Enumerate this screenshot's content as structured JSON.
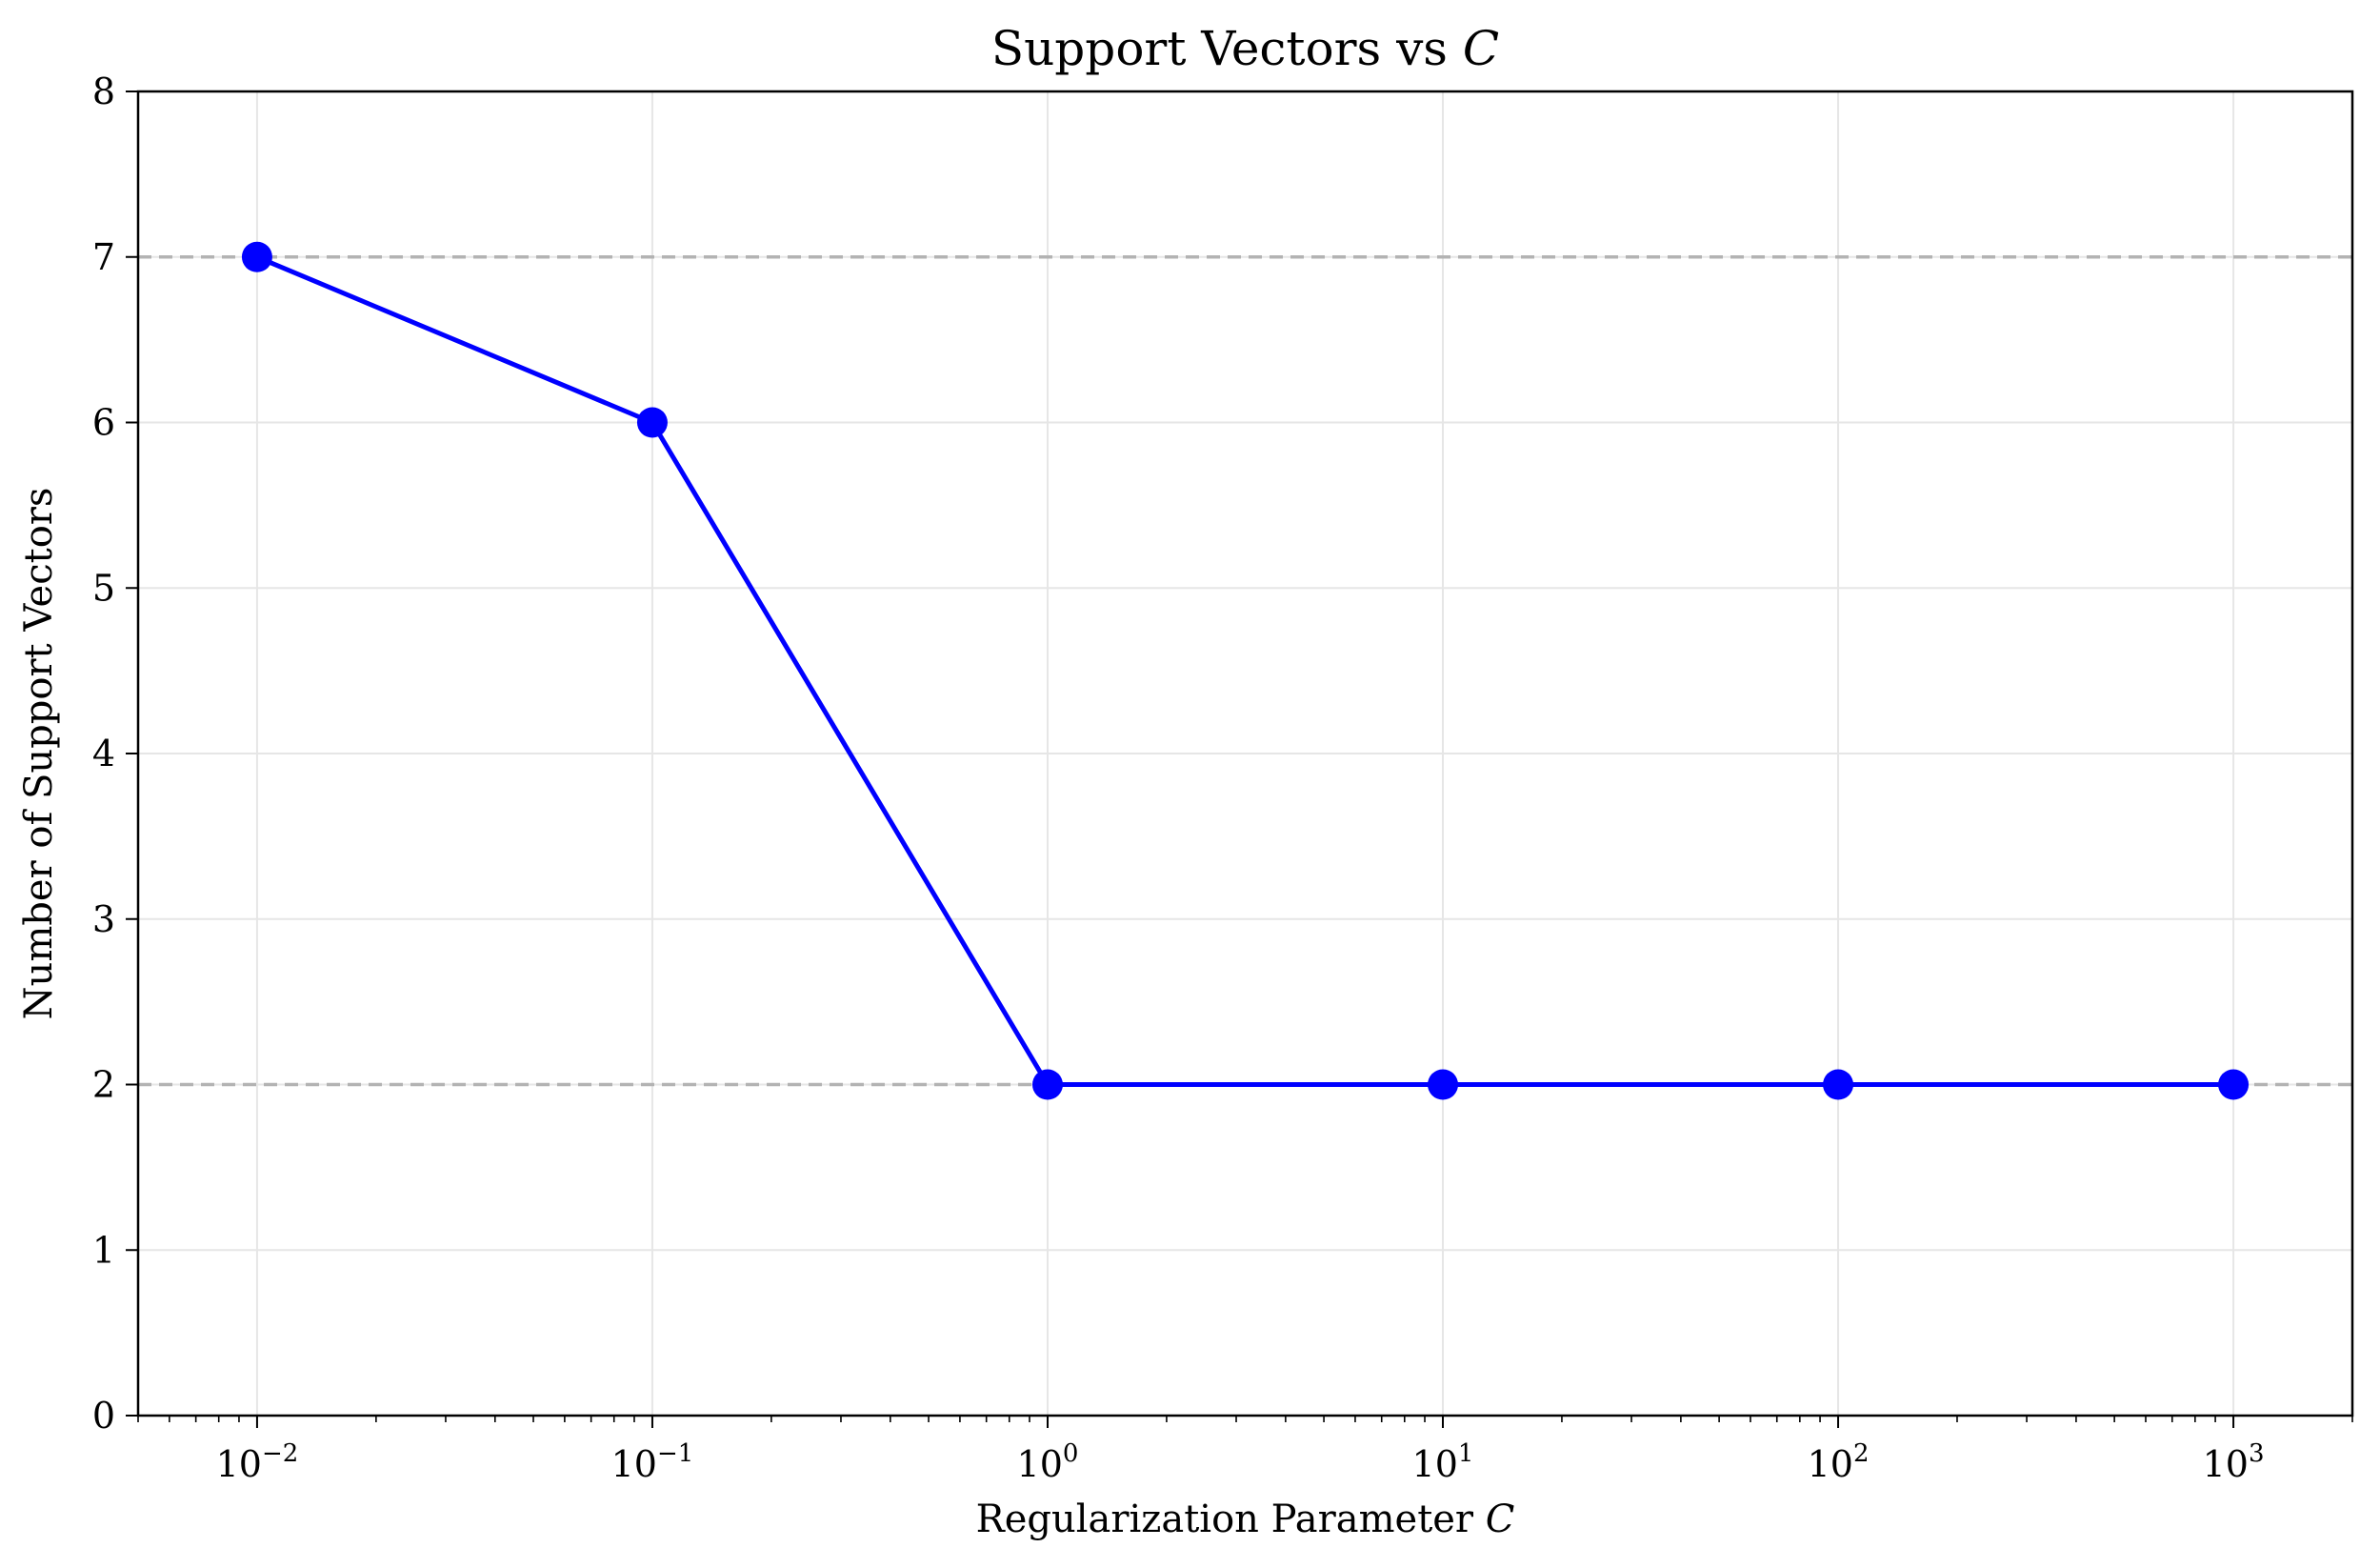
{
  "chart_data": {
    "type": "line",
    "title_prefix": "Support Vectors vs ",
    "title_symbol": "C",
    "xlabel_prefix": "Regularization Parameter ",
    "xlabel_symbol": "C",
    "ylabel": "Number of Support Vectors",
    "x_scale": "log",
    "xlim": [
      0.005,
      2000
    ],
    "ylim": [
      0,
      8
    ],
    "grid": true,
    "x": [
      0.01,
      0.1,
      1,
      10,
      100,
      1000
    ],
    "series": [
      {
        "values": [
          7,
          6,
          2,
          2,
          2,
          2
        ],
        "color": "#0000ff",
        "marker": "circle"
      }
    ],
    "reference_lines": [
      {
        "y": 7,
        "style": "dashed",
        "color": "#b3b3b3"
      },
      {
        "y": 2,
        "style": "dashed",
        "color": "#b3b3b3"
      }
    ],
    "y_ticks": [
      "0",
      "1",
      "2",
      "3",
      "4",
      "5",
      "6",
      "7",
      "8"
    ],
    "x_ticks": [
      {
        "value": 0.01,
        "base": "10",
        "exp": "−2"
      },
      {
        "value": 0.1,
        "base": "10",
        "exp": "−1"
      },
      {
        "value": 1,
        "base": "10",
        "exp": "0"
      },
      {
        "value": 10,
        "base": "10",
        "exp": "1"
      },
      {
        "value": 100,
        "base": "10",
        "exp": "2"
      },
      {
        "value": 1000,
        "base": "10",
        "exp": "3"
      }
    ]
  }
}
